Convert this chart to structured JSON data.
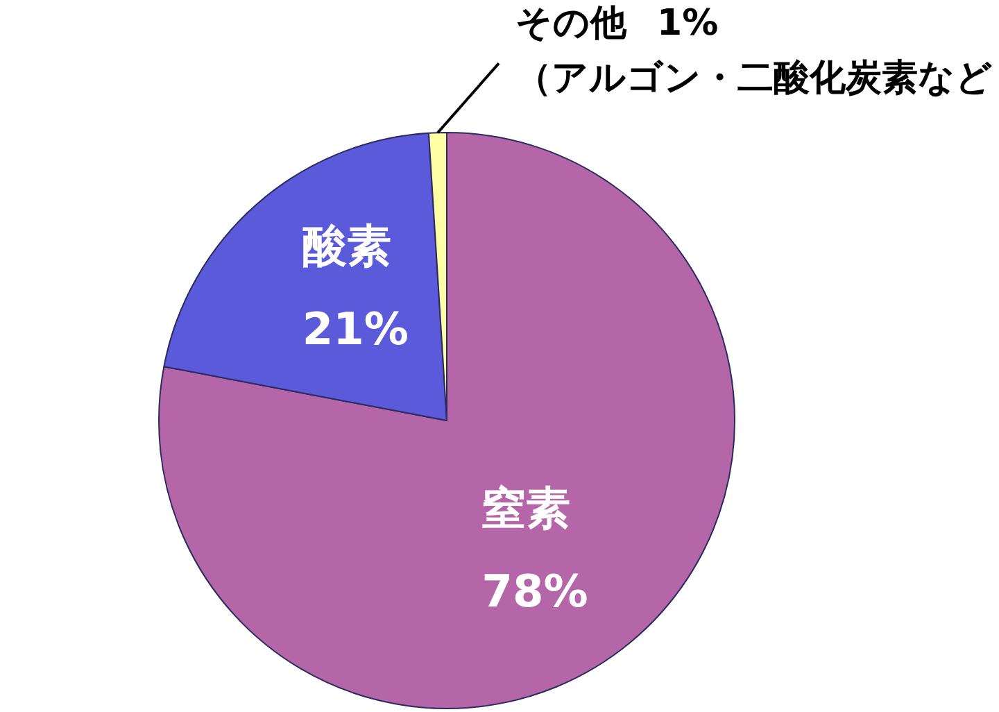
{
  "chart_data": {
    "type": "pie",
    "categories": [
      "窒素",
      "酸素",
      "その他"
    ],
    "values": [
      78,
      21,
      1
    ],
    "colors": [
      "#b566a8",
      "#5a5adb",
      "#ffffa6"
    ],
    "value_labels": [
      "78%",
      "21%",
      "1%"
    ],
    "annotations": [
      "（アルゴン・二酸化炭素など"
    ]
  }
}
